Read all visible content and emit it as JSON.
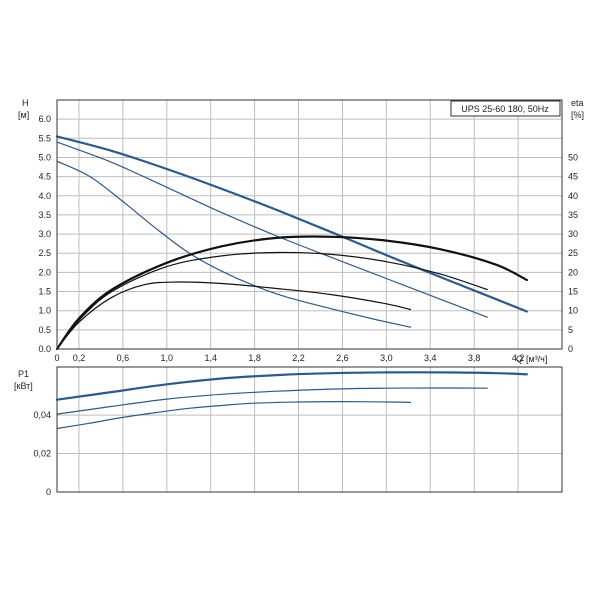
{
  "chart_data": [
    {
      "type": "line",
      "title": "UPS 25-60 180, 50Hz",
      "ylabel": "H",
      "ylabel_unit": "[м]",
      "y2label": "eta",
      "y2label_unit": "[%]",
      "xlabel": "Q",
      "xlabel_unit": "[м³/ч]",
      "xlim": [
        0,
        4.6
      ],
      "ylim": [
        0,
        6.5
      ],
      "y2lim": [
        0,
        65
      ],
      "x_ticks": [
        "0",
        "0,2",
        "0,6",
        "1,0",
        "1,4",
        "1,8",
        "2,2",
        "2,6",
        "3,0",
        "3,4",
        "3,8",
        "4,2"
      ],
      "y_ticks": [
        "0.0",
        "0.5",
        "1.0",
        "1.5",
        "2.0",
        "2.5",
        "3.0",
        "3.5",
        "4.0",
        "4.5",
        "5.0",
        "5.5",
        "6.0"
      ],
      "y2_ticks": [
        "0",
        "5",
        "10",
        "15",
        "20",
        "25",
        "30",
        "35",
        "40",
        "45",
        "50"
      ],
      "grid": true,
      "colors": {
        "head": "#2e5a88",
        "efficiency": "#111111"
      },
      "series": [
        {
          "kind": "head",
          "x": [
            0,
            0.5,
            1.0,
            1.5,
            2.0,
            2.5,
            3.0,
            3.5,
            4.0,
            4.28
          ],
          "y": [
            5.55,
            5.17,
            4.7,
            4.18,
            3.63,
            3.05,
            2.45,
            1.87,
            1.3,
            0.98
          ]
        },
        {
          "kind": "head",
          "x": [
            0,
            0.5,
            1.0,
            1.5,
            2.0,
            2.5,
            3.0,
            3.5,
            3.92
          ],
          "y": [
            5.4,
            4.87,
            4.22,
            3.56,
            2.95,
            2.39,
            1.84,
            1.29,
            0.83
          ]
        },
        {
          "kind": "head",
          "x": [
            0,
            0.3,
            0.6,
            0.9,
            1.2,
            1.5,
            1.8,
            2.1,
            2.5,
            2.9,
            3.22
          ],
          "y": [
            4.9,
            4.5,
            3.85,
            3.15,
            2.51,
            2.03,
            1.65,
            1.35,
            1.05,
            0.77,
            0.57
          ]
        },
        {
          "kind": "efficiency",
          "x": [
            0,
            0.2,
            0.5,
            1.0,
            1.5,
            2.0,
            2.5,
            3.0,
            3.5,
            4.0,
            4.28
          ],
          "y": [
            0,
            8,
            15.5,
            22.5,
            26.8,
            29,
            29.3,
            28.3,
            26,
            22,
            18
          ]
        },
        {
          "kind": "efficiency",
          "x": [
            0,
            0.2,
            0.5,
            1.0,
            1.5,
            2.0,
            2.5,
            3.0,
            3.5,
            3.92
          ],
          "y": [
            0,
            7.5,
            15,
            21.5,
            24.3,
            25.2,
            24.7,
            22.8,
            19.5,
            15.5
          ]
        },
        {
          "kind": "efficiency",
          "x": [
            0,
            0.2,
            0.5,
            0.8,
            1.1,
            1.5,
            2.0,
            2.5,
            3.0,
            3.22
          ],
          "y": [
            0,
            7,
            13.5,
            16.8,
            17.5,
            17.1,
            15.8,
            14.2,
            11.8,
            10.3
          ]
        }
      ]
    },
    {
      "type": "line",
      "ylabel": "P1",
      "ylabel_unit": "[кВт]",
      "xlim": [
        0,
        4.6
      ],
      "ylim": [
        0,
        0.065
      ],
      "y_ticks": [
        "0",
        "0,02",
        "0,04"
      ],
      "grid": true,
      "colors": {
        "power": "#2e5a88"
      },
      "series": [
        {
          "kind": "power",
          "x": [
            0,
            0.5,
            1.0,
            1.5,
            2.0,
            2.5,
            3.0,
            3.5,
            4.0,
            4.28
          ],
          "y": [
            0.048,
            0.052,
            0.056,
            0.059,
            0.0608,
            0.0618,
            0.0622,
            0.0622,
            0.0618,
            0.0612
          ]
        },
        {
          "kind": "power",
          "x": [
            0,
            0.5,
            1.0,
            1.5,
            2.0,
            2.5,
            3.0,
            3.5,
            3.92
          ],
          "y": [
            0.0405,
            0.0445,
            0.0483,
            0.0508,
            0.0524,
            0.0535,
            0.054,
            0.0541,
            0.054
          ]
        },
        {
          "kind": "power",
          "x": [
            0,
            0.3,
            0.6,
            0.9,
            1.2,
            1.5,
            1.8,
            2.2,
            2.6,
            3.0,
            3.22
          ],
          "y": [
            0.033,
            0.0358,
            0.0388,
            0.0413,
            0.0435,
            0.045,
            0.0462,
            0.0468,
            0.047,
            0.0468,
            0.0466
          ]
        }
      ]
    }
  ]
}
